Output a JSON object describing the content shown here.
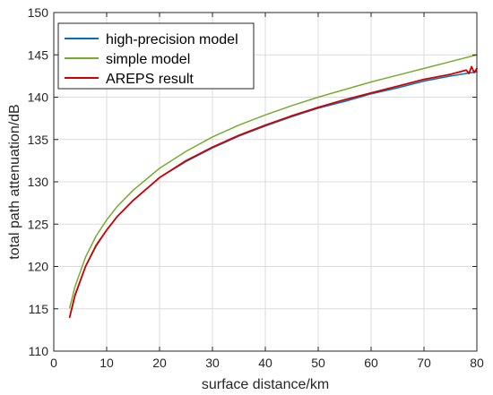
{
  "chart_data": {
    "type": "line",
    "xlabel": "surface distance/km",
    "ylabel": "total path attenuation/dB",
    "xlim": [
      0,
      80
    ],
    "ylim": [
      110,
      150
    ],
    "xticks": [
      0,
      10,
      20,
      30,
      40,
      50,
      60,
      70,
      80
    ],
    "yticks": [
      110,
      115,
      120,
      125,
      130,
      135,
      140,
      145,
      150
    ],
    "grid": true,
    "legend_position": "top-left",
    "series": [
      {
        "name": "high-precision model",
        "color": "#0072BD",
        "x": [
          3,
          4,
          6,
          8,
          10,
          12,
          15,
          20,
          25,
          30,
          35,
          40,
          45,
          50,
          55,
          60,
          65,
          70,
          75,
          80
        ],
        "y": [
          114.0,
          116.5,
          120.0,
          122.4,
          124.3,
          125.9,
          127.8,
          130.5,
          132.4,
          134.0,
          135.4,
          136.6,
          137.7,
          138.7,
          139.5,
          140.4,
          141.1,
          141.9,
          142.5,
          143.0
        ]
      },
      {
        "name": "simple model",
        "color": "#77AC30",
        "x": [
          3,
          4,
          6,
          8,
          10,
          12,
          15,
          20,
          25,
          30,
          35,
          40,
          45,
          50,
          55,
          60,
          65,
          70,
          75,
          80
        ],
        "y": [
          115.1,
          117.6,
          121.1,
          123.6,
          125.5,
          127.1,
          129.0,
          131.6,
          133.6,
          135.3,
          136.7,
          137.9,
          139.0,
          140.0,
          140.9,
          141.8,
          142.6,
          143.4,
          144.2,
          145.0
        ]
      },
      {
        "name": "AREPS result",
        "color": "#D00000",
        "x": [
          3,
          4,
          6,
          8,
          10,
          12,
          15,
          20,
          25,
          30,
          35,
          40,
          45,
          50,
          55,
          60,
          65,
          70,
          75,
          78,
          78.5,
          79,
          79.5,
          80
        ],
        "y": [
          114.0,
          116.6,
          120.0,
          122.5,
          124.3,
          125.9,
          127.8,
          130.5,
          132.5,
          134.1,
          135.5,
          136.7,
          137.8,
          138.8,
          139.7,
          140.5,
          141.3,
          142.1,
          142.7,
          143.2,
          142.8,
          143.6,
          142.9,
          143.4
        ]
      }
    ]
  }
}
